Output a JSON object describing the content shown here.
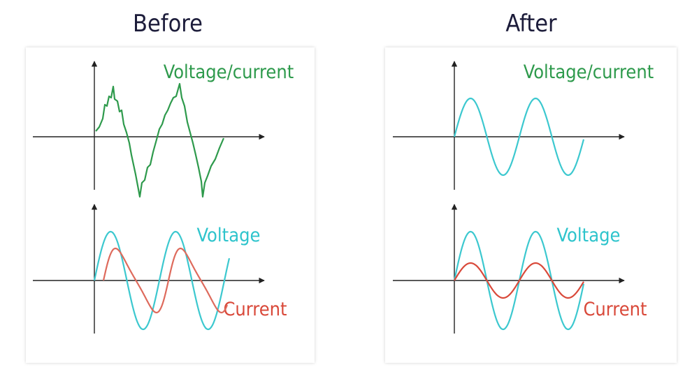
{
  "panels": [
    {
      "title": "Before",
      "top_label": "Voltage/current",
      "voltage_label": "Voltage",
      "current_label": "Current"
    },
    {
      "title": "After",
      "top_label": "Voltage/current",
      "voltage_label": "Voltage",
      "current_label": "Current"
    }
  ]
}
